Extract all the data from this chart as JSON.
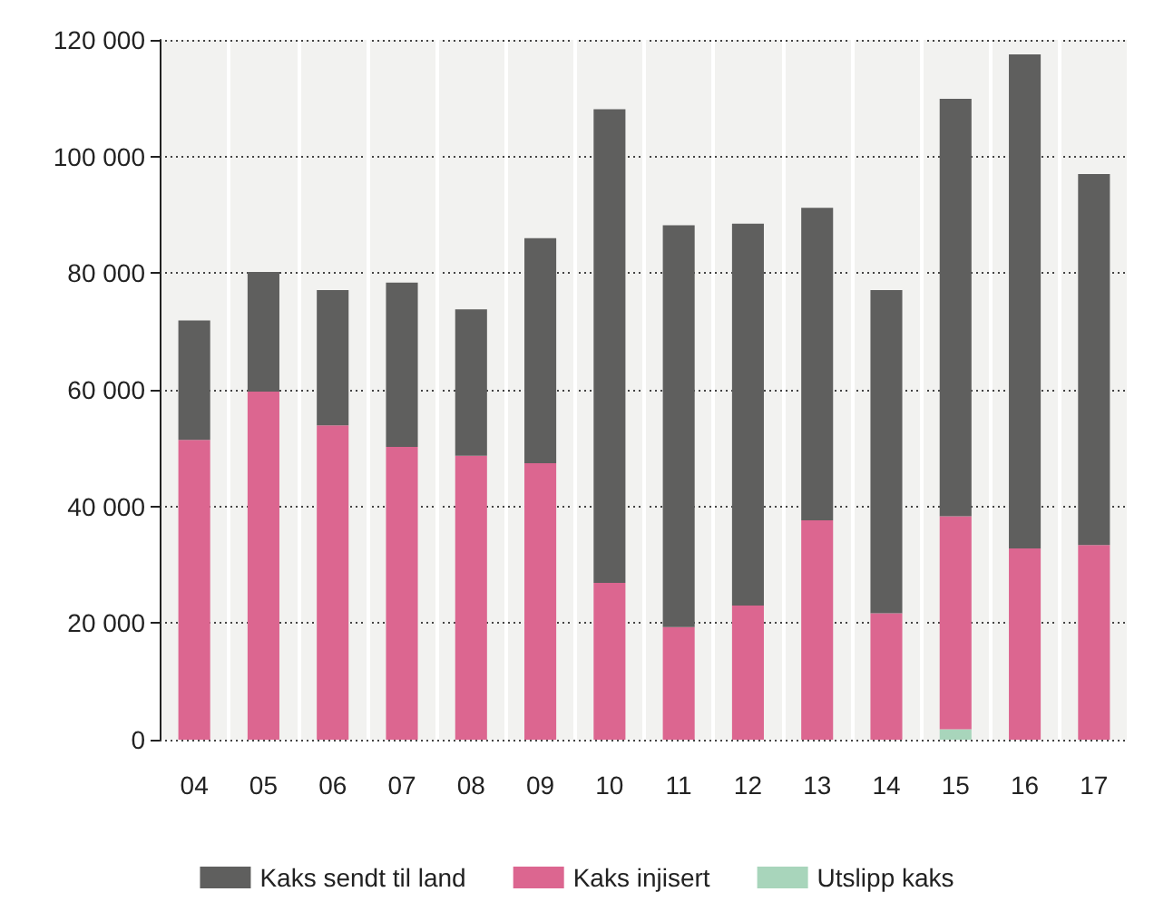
{
  "chart_data": {
    "type": "bar",
    "stacked": true,
    "categories": [
      "04",
      "05",
      "06",
      "07",
      "08",
      "09",
      "10",
      "11",
      "12",
      "13",
      "14",
      "15",
      "16",
      "17"
    ],
    "series": [
      {
        "name": "Utslipp kaks",
        "color": "#a8d5bb",
        "values": [
          null,
          null,
          null,
          null,
          null,
          null,
          null,
          null,
          null,
          null,
          null,
          1800,
          null,
          null
        ]
      },
      {
        "name": "Kaks injisert",
        "color": "#dc6690",
        "values": [
          51400,
          59700,
          53900,
          50200,
          48700,
          47400,
          26900,
          19300,
          23000,
          37600,
          21700,
          36500,
          32800,
          33400
        ]
      },
      {
        "name": "Kaks sendt til land",
        "color": "#5f5f5e",
        "values": [
          20500,
          20500,
          23200,
          28200,
          25100,
          38600,
          81200,
          68900,
          65500,
          53600,
          55400,
          71600,
          84700,
          63600
        ]
      }
    ],
    "ylim": [
      0,
      120000
    ],
    "yticks": [
      {
        "value": 0,
        "label": "0"
      },
      {
        "value": 20000,
        "label": "20 000"
      },
      {
        "value": 40000,
        "label": "40 000"
      },
      {
        "value": 60000,
        "label": "60 000"
      },
      {
        "value": 80000,
        "label": "80 000"
      },
      {
        "value": 100000,
        "label": "100 000"
      },
      {
        "value": 120000,
        "label": "120 000"
      }
    ],
    "grid": true,
    "legend": "bottom"
  }
}
